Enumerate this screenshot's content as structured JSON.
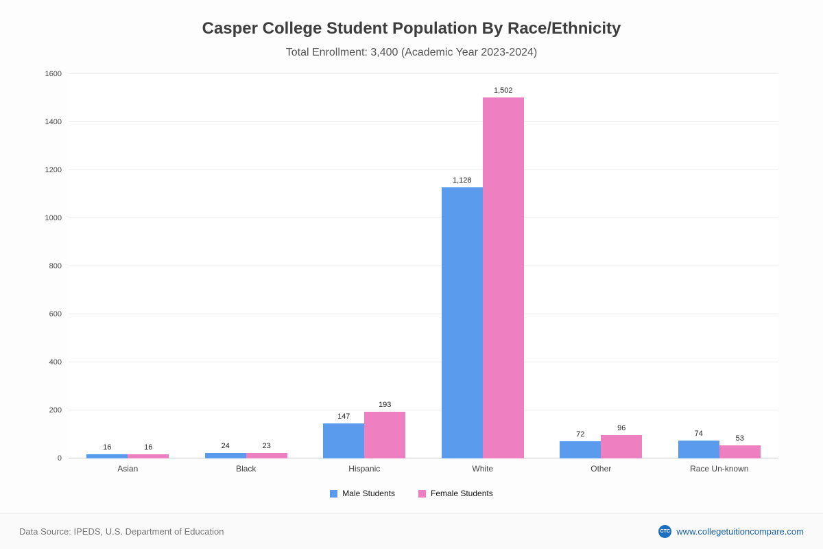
{
  "header": {
    "title": "Casper College Student Population By Race/Ethnicity",
    "subtitle": "Total Enrollment: 3,400 (Academic Year 2023-2024)"
  },
  "chart_data": {
    "type": "bar",
    "title": "Casper College Student Population By Race/Ethnicity",
    "subtitle": "Total Enrollment: 3,400 (Academic Year 2023-2024)",
    "categories": [
      "Asian",
      "Black",
      "Hispanic",
      "White",
      "Other",
      "Race Un-known"
    ],
    "series": [
      {
        "name": "Male Students",
        "color": "#5b9bed",
        "values": [
          16,
          24,
          147,
          1128,
          72,
          74
        ],
        "labels": [
          "16",
          "24",
          "147",
          "1,128",
          "72",
          "74"
        ]
      },
      {
        "name": "Female Students",
        "color": "#ee7fc1",
        "values": [
          16,
          23,
          193,
          1502,
          96,
          53
        ],
        "labels": [
          "16",
          "23",
          "193",
          "1,502",
          "96",
          "53"
        ]
      }
    ],
    "ylim": [
      0,
      1600
    ],
    "yticks": [
      0,
      200,
      400,
      600,
      800,
      1000,
      1200,
      1400,
      1600
    ],
    "grid": true,
    "legend_position": "bottom",
    "xlabel": "",
    "ylabel": ""
  },
  "footer": {
    "source": "Data Source: IPEDS, U.S. Department of Education",
    "site_text": "www.collegetuitioncompare.com",
    "site_icon_text": "CTC"
  }
}
